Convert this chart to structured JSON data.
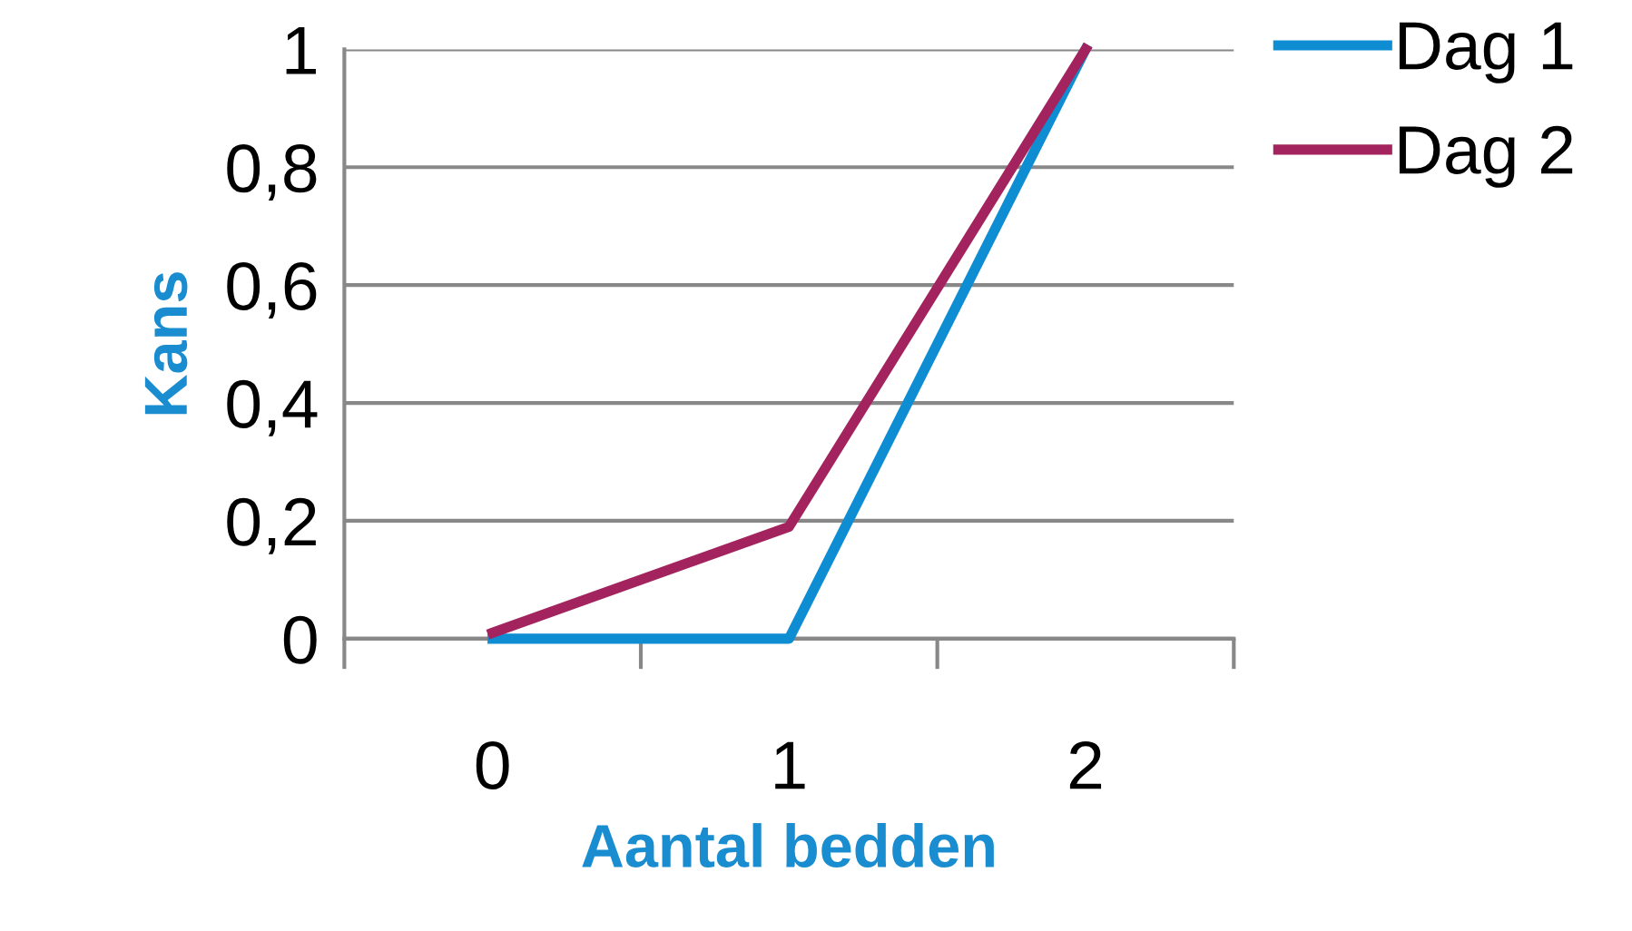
{
  "chart_data": {
    "type": "line",
    "xlabel": "Aantal bedden",
    "ylabel": "Kans",
    "categories": [
      "0",
      "1",
      "2"
    ],
    "series": [
      {
        "name": "Dag 1",
        "color": "#0e8dd2",
        "values": [
          0,
          0,
          1
        ]
      },
      {
        "name": "Dag 2",
        "color": "#a3235f",
        "values": [
          0.01,
          0.19,
          1
        ]
      }
    ],
    "ylim": [
      0,
      1
    ],
    "yticks": [
      0,
      {
        "value": 0.2,
        "label": "0,2"
      },
      {
        "value": 0.4,
        "label": "0,4"
      },
      {
        "value": 0.6,
        "label": "0,6"
      },
      {
        "value": 0.8,
        "label": "0,8"
      },
      1
    ],
    "grid": "y",
    "legend": "right",
    "marker": "none",
    "line_style": "solid"
  }
}
